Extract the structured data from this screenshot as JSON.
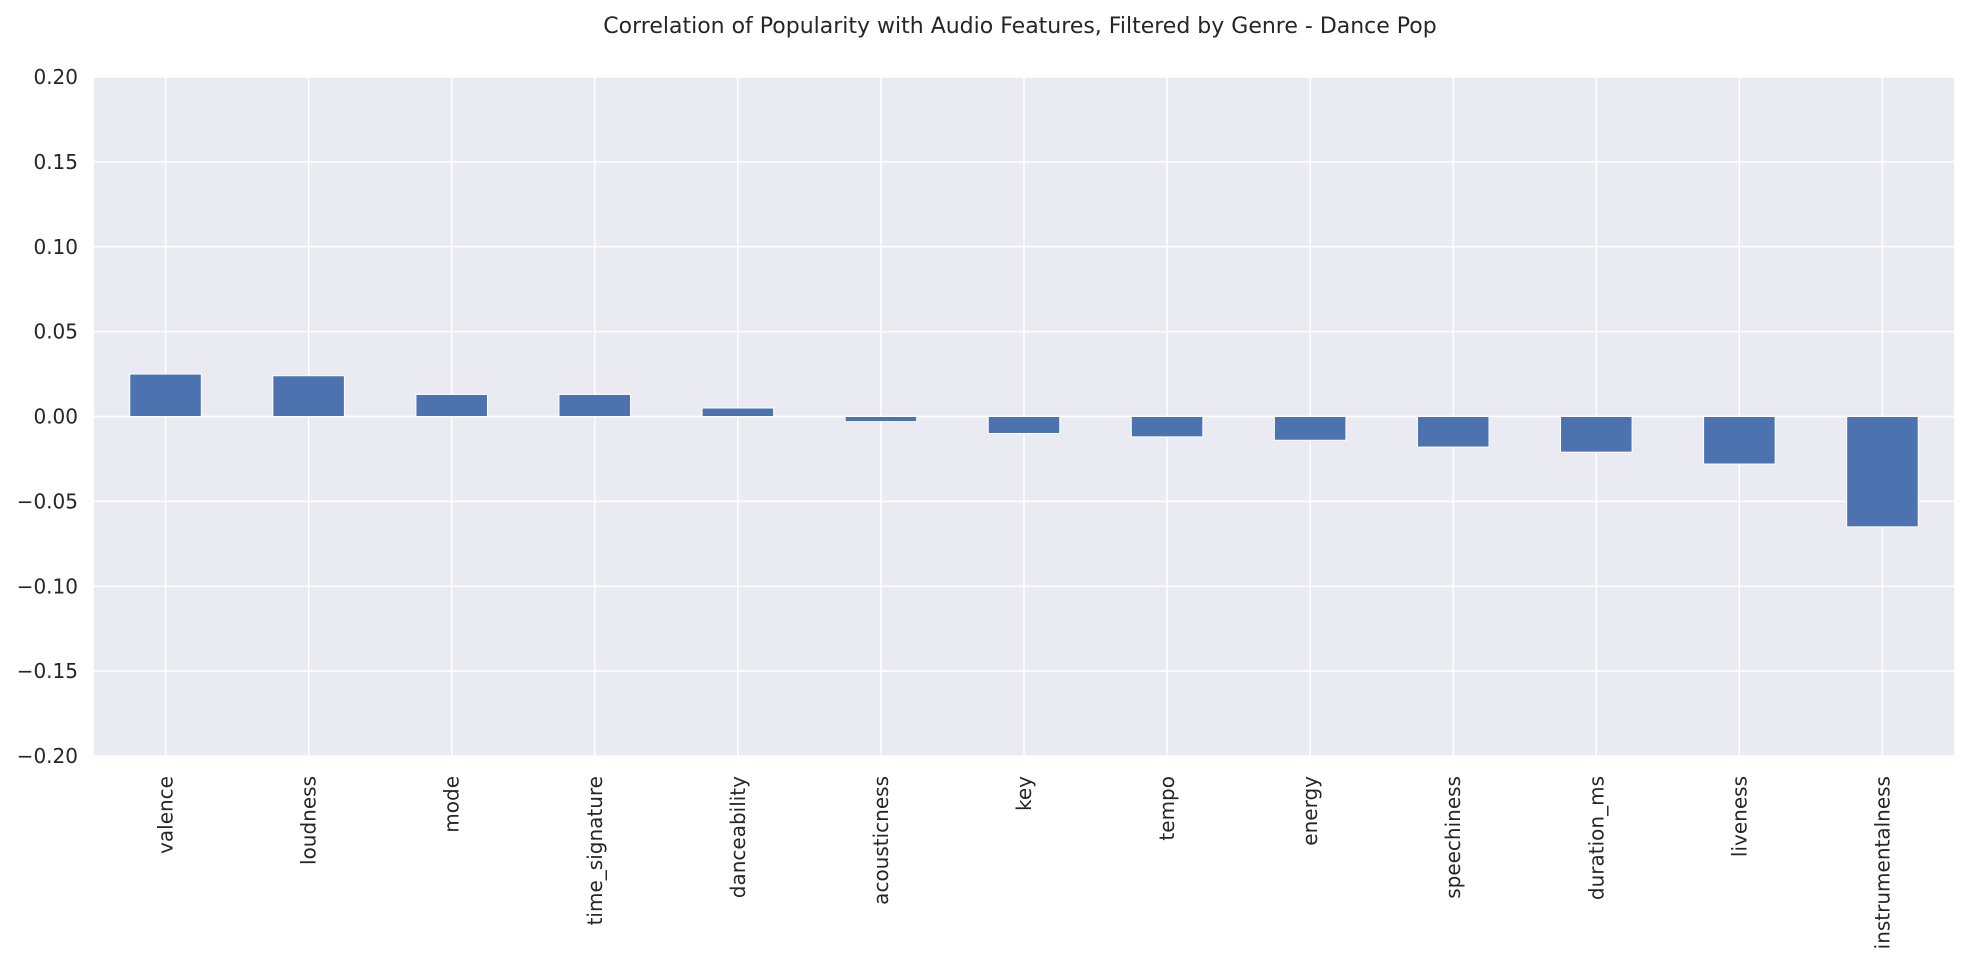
{
  "chart_data": {
    "type": "bar",
    "title": "Correlation of Popularity with Audio Features, Filtered by Genre - Dance Pop",
    "xlabel": "",
    "ylabel": "",
    "categories": [
      "valence",
      "loudness",
      "mode",
      "time_signature",
      "danceability",
      "acousticness",
      "key",
      "tempo",
      "energy",
      "speechiness",
      "duration_ms",
      "liveness",
      "instrumentalness"
    ],
    "values": [
      0.025,
      0.024,
      0.013,
      0.013,
      0.005,
      -0.003,
      -0.01,
      -0.012,
      -0.014,
      -0.018,
      -0.021,
      -0.028,
      -0.065
    ],
    "ylim": [
      -0.2,
      0.2
    ],
    "yticks": [
      "−0.20",
      "−0.15",
      "−0.10",
      "−0.05",
      "0.00",
      "0.05",
      "0.10",
      "0.15",
      "0.20"
    ],
    "ytick_values": [
      -0.2,
      -0.15,
      -0.1,
      -0.05,
      0.0,
      0.05,
      0.1,
      0.15,
      0.2
    ],
    "grid": true,
    "bar_color": "#4c72b0",
    "background_color": "#eaeaf2"
  }
}
